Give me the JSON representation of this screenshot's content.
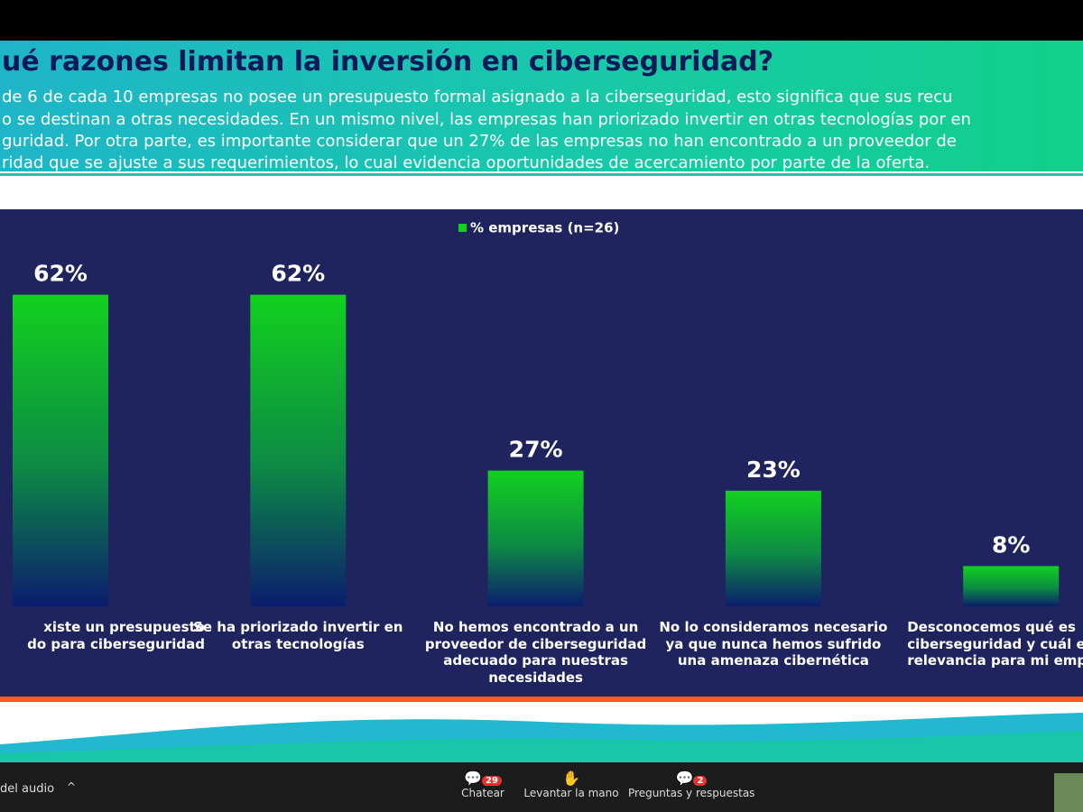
{
  "slide": {
    "title": "ué razones limitan la inversión en ciberseguridad?",
    "paragraph": [
      "de 6 de cada 10 empresas no posee un presupuesto formal asignado a la ciberseguridad, esto significa que sus recu",
      "o se destinan a otras necesidades. En un mismo nivel, las empresas han priorizado invertir en otras tecnologías por en",
      "guridad. Por otra parte, es importante considerar que un 27% de las empresas no han encontrado a un proveedor de",
      "ridad que se ajuste a sus requerimientos, lo cual evidencia oportunidades de acercamiento por parte de la oferta."
    ]
  },
  "chart_data": {
    "type": "bar",
    "categories": [
      "xiste un presupuesto\ndo para ciberseguridad",
      "Se ha priorizado invertir en\notras tecnologías",
      "No hemos encontrado a un\nproveedor de ciberseguridad\nadecuado para nuestras\nnecesidades",
      "No lo consideramos necesario\nya que nunca hemos sufrido\nuna amenaza cibernética",
      "Desconocemos qué es\nciberseguridad y cuál e\nrelevancia para mi emp"
    ],
    "series": [
      {
        "name": "% empresas (n=26)",
        "color": "#12d11f",
        "values": [
          62,
          62,
          27,
          23,
          8
        ],
        "value_labels": [
          "62%",
          "62%",
          "27%",
          "23%",
          "8%"
        ]
      }
    ]
  },
  "toolbar": {
    "audio": "del audio",
    "chat": "Chatear",
    "chat_badge": "29",
    "raise_hand": "Levantar la mano",
    "qa": "Preguntas y respuestas",
    "qa_badge": "2"
  }
}
